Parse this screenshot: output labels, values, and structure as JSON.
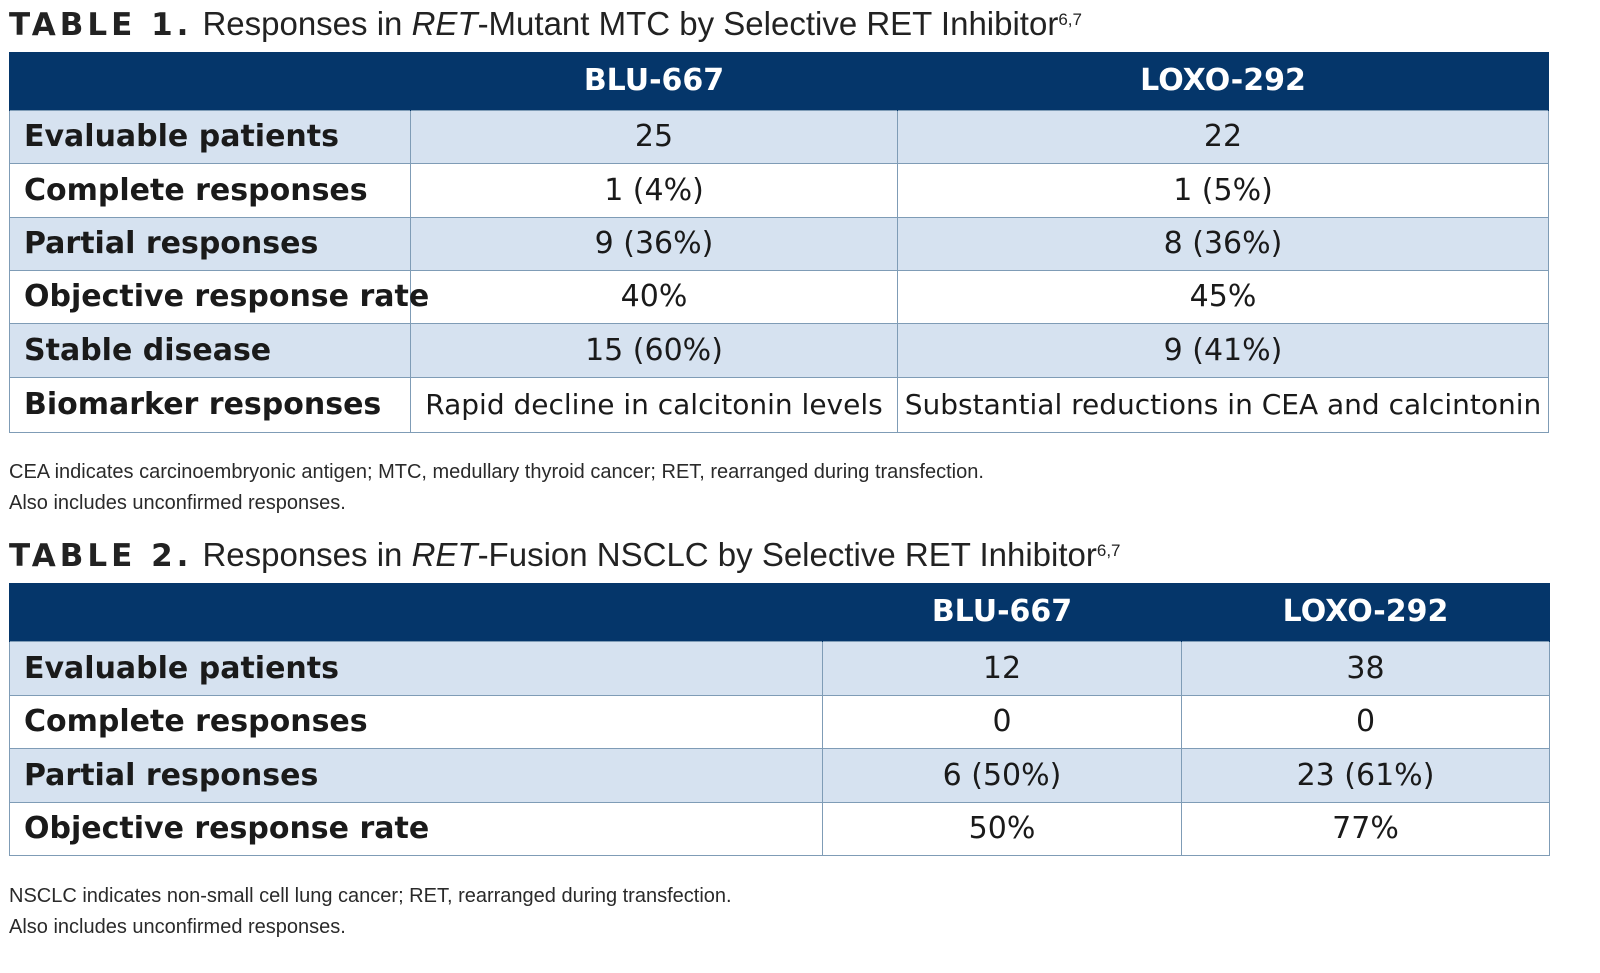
{
  "table1": {
    "label": "TABLE 1.",
    "title_pre": "Responses in ",
    "title_ital": "RET",
    "title_post": "-Mutant MTC by Selective RET Inhibitor",
    "title_refs": "6,7",
    "columns": [
      "",
      "BLU-667",
      "LOXO-292"
    ],
    "rows": [
      {
        "label": "Evaluable patients",
        "values": [
          "25",
          "22"
        ]
      },
      {
        "label": "Complete responses",
        "values": [
          "1 (4%)",
          "1 (5%)"
        ]
      },
      {
        "label": "Partial responses",
        "values": [
          "9 (36%)",
          "8 (36%)"
        ]
      },
      {
        "label": "Objective response rate",
        "values": [
          "40%",
          "45%"
        ]
      },
      {
        "label": "Stable disease",
        "values": [
          "15 (60%)",
          "9 (41%)"
        ]
      },
      {
        "label": "Biomarker responses",
        "values": [
          "Rapid decline in calcitonin levels",
          "Substantial reductions in CEA and calcintonin"
        ]
      }
    ],
    "footnotes": [
      "CEA indicates carcinoembryonic antigen; MTC, medullary thyroid cancer; RET, rearranged during transfection.",
      "Also includes unconfirmed responses."
    ]
  },
  "table2": {
    "label": "TABLE 2.",
    "title_pre": "Responses in ",
    "title_ital": "RET",
    "title_post": "-Fusion NSCLC by Selective RET Inhibitor",
    "title_refs": "6,7",
    "columns": [
      "",
      "BLU-667",
      "LOXO-292"
    ],
    "rows": [
      {
        "label": "Evaluable patients",
        "values": [
          "12",
          "38"
        ]
      },
      {
        "label": "Complete responses",
        "values": [
          "0",
          "0"
        ]
      },
      {
        "label": "Partial responses",
        "values": [
          "6 (50%)",
          "23 (61%)"
        ]
      },
      {
        "label": "Objective response rate",
        "values": [
          "50%",
          "77%"
        ]
      }
    ],
    "footnotes": [
      "NSCLC indicates non-small cell lung cancer; RET, rearranged during transfection.",
      "Also includes unconfirmed responses."
    ]
  },
  "colors": {
    "header_bg": "#05366a",
    "shade_row": "#d6e2f0",
    "grid_line": "#7f9cb6"
  }
}
